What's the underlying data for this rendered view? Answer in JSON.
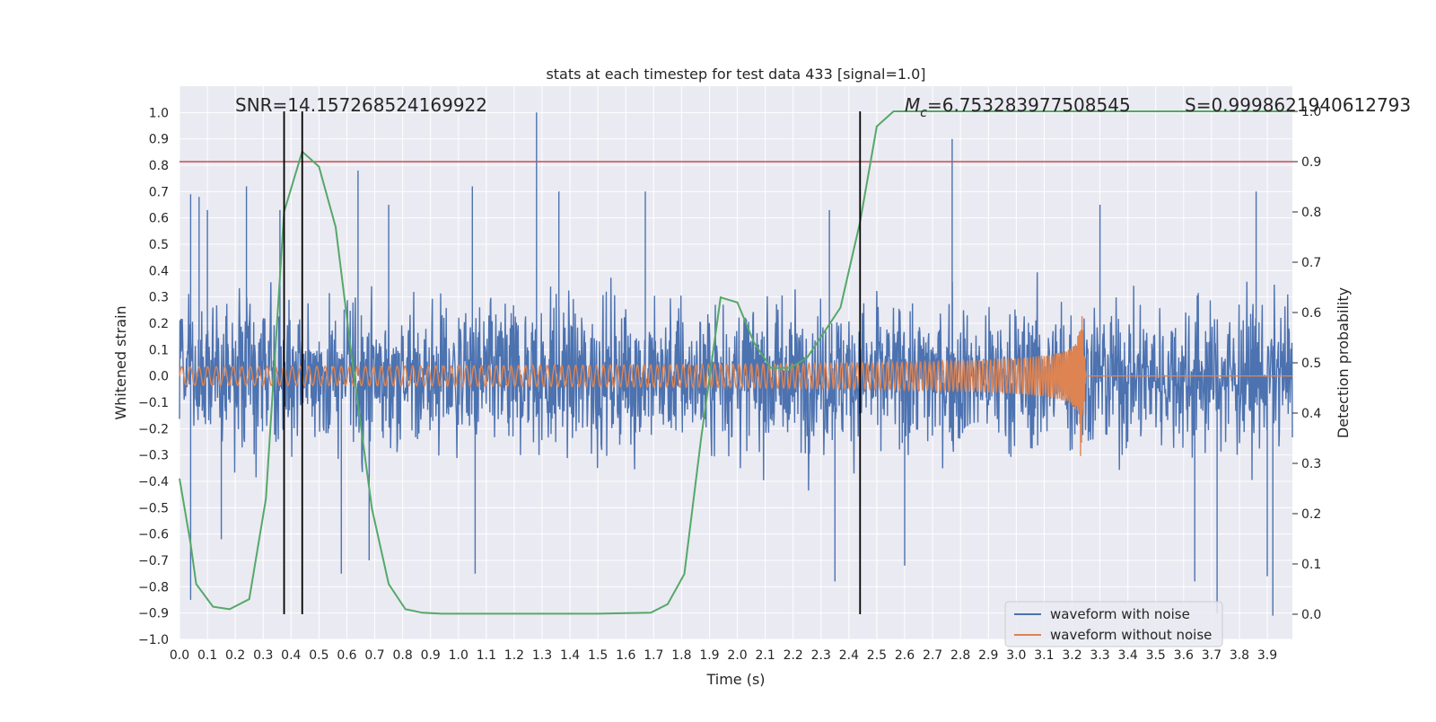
{
  "chart_data": {
    "type": "line",
    "title": "stats at each timestep for test data 433 [signal=1.0]",
    "xlabel": "Time (s)",
    "ylabel_left": "Whitened strain",
    "ylabel_right": "Detection probability",
    "xlim": [
      0.0,
      3.99
    ],
    "ylim_left": [
      -1.0,
      1.1
    ],
    "ylim_right": [
      -0.05,
      1.05
    ],
    "x_ticks": [
      "0.0",
      "0.1",
      "0.2",
      "0.3",
      "0.4",
      "0.5",
      "0.6",
      "0.7",
      "0.8",
      "0.9",
      "1.0",
      "1.1",
      "1.2",
      "1.3",
      "1.4",
      "1.5",
      "1.6",
      "1.7",
      "1.8",
      "1.9",
      "2.0",
      "2.1",
      "2.2",
      "2.3",
      "2.4",
      "2.5",
      "2.6",
      "2.7",
      "2.8",
      "2.9",
      "3.0",
      "3.1",
      "3.2",
      "3.3",
      "3.4",
      "3.5",
      "3.6",
      "3.7",
      "3.8",
      "3.9"
    ],
    "y_ticks_left": [
      "1.0",
      "0.9",
      "0.8",
      "0.7",
      "0.6",
      "0.5",
      "0.4",
      "0.3",
      "0.2",
      "0.1",
      "0.0",
      "−0.1",
      "−0.2",
      "−0.3",
      "−0.4",
      "−0.5",
      "−0.6",
      "−0.7",
      "−0.8",
      "−0.9",
      "−1.0"
    ],
    "y_ticks_right": [
      "1.0",
      "0.9",
      "0.8",
      "0.7",
      "0.6",
      "0.5",
      "0.4",
      "0.3",
      "0.2",
      "0.1",
      "0.0"
    ],
    "annotations": {
      "snr": "SNR=14.157268524169922",
      "mc_symbol": "M",
      "mc_sub": "c",
      "mc_value": "=6.753283977508545",
      "s": "S=0.9998621940612793"
    },
    "threshold": {
      "axis": "right",
      "value": 0.9,
      "color": "#c44e52"
    },
    "vertical_lines": [
      0.375,
      0.44,
      2.44
    ],
    "series": [
      {
        "name": "waveform with noise",
        "axis": "left",
        "color": "#4c72b0",
        "description_only": "dense noise trace",
        "max_abs_typical": 0.35,
        "peaks": [
          {
            "x": 0.04,
            "y": 0.69
          },
          {
            "x": 0.07,
            "y": 0.68
          },
          {
            "x": 0.1,
            "y": 0.63
          },
          {
            "x": 0.24,
            "y": 0.72
          },
          {
            "x": 0.36,
            "y": 0.63
          },
          {
            "x": 0.64,
            "y": 0.78
          },
          {
            "x": 0.75,
            "y": 0.65
          },
          {
            "x": 1.05,
            "y": 0.72
          },
          {
            "x": 1.28,
            "y": 1.0
          },
          {
            "x": 1.36,
            "y": 0.7
          },
          {
            "x": 1.67,
            "y": 0.7
          },
          {
            "x": 2.33,
            "y": 0.63
          },
          {
            "x": 2.77,
            "y": 0.9
          },
          {
            "x": 3.3,
            "y": 0.65
          },
          {
            "x": 3.86,
            "y": 0.7
          },
          {
            "x": 0.04,
            "y": -0.85
          },
          {
            "x": 0.15,
            "y": -0.62
          },
          {
            "x": 0.58,
            "y": -0.75
          },
          {
            "x": 0.68,
            "y": -0.7
          },
          {
            "x": 1.06,
            "y": -0.75
          },
          {
            "x": 2.35,
            "y": -0.78
          },
          {
            "x": 2.6,
            "y": -0.72
          },
          {
            "x": 3.72,
            "y": -0.9
          },
          {
            "x": 3.64,
            "y": -0.78
          },
          {
            "x": 3.92,
            "y": -0.91
          },
          {
            "x": 3.9,
            "y": -0.76
          }
        ]
      },
      {
        "name": "waveform without noise",
        "axis": "left",
        "color": "#dd8452",
        "chirp": {
          "t_start": 0.0,
          "t_merge": 3.23,
          "amplitude_start": 0.035,
          "amplitude_peak": 0.33,
          "frequency_start_hz": 32,
          "ringdown_end": 3.25
        }
      },
      {
        "name": "",
        "axis": "right",
        "color": "#55a868",
        "x": [
          0.0,
          0.04,
          0.06,
          0.12,
          0.18,
          0.25,
          0.31,
          0.375,
          0.44,
          0.5,
          0.56,
          0.62,
          0.69,
          0.75,
          0.81,
          0.87,
          0.94,
          1.0,
          1.2,
          1.5,
          1.69,
          1.75,
          1.81,
          1.87,
          1.94,
          2.0,
          2.06,
          2.12,
          2.19,
          2.25,
          2.31,
          2.37,
          2.44,
          2.5,
          2.56,
          2.62,
          2.69,
          3.0,
          3.5,
          3.99
        ],
        "y": [
          0.27,
          0.14,
          0.06,
          0.015,
          0.01,
          0.03,
          0.23,
          0.8,
          0.92,
          0.89,
          0.77,
          0.5,
          0.21,
          0.06,
          0.01,
          0.003,
          0.001,
          0.001,
          0.001,
          0.001,
          0.003,
          0.02,
          0.08,
          0.35,
          0.63,
          0.62,
          0.54,
          0.49,
          0.49,
          0.51,
          0.56,
          0.61,
          0.78,
          0.97,
          1.0,
          1.0,
          1.0,
          1.0,
          1.0,
          1.0
        ]
      }
    ],
    "legend": {
      "placement": "lower-right",
      "entries": [
        "waveform with noise",
        "waveform without noise"
      ]
    },
    "grid": true
  }
}
